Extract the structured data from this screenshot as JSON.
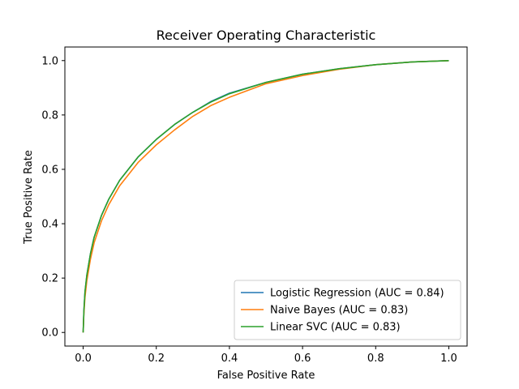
{
  "chart_data": {
    "type": "line",
    "title": "Receiver Operating Characteristic",
    "xlabel": "False Positive Rate",
    "ylabel": "True Positive Rate",
    "xlim": [
      -0.05,
      1.05
    ],
    "ylim": [
      -0.05,
      1.05
    ],
    "xticks": [
      "0.0",
      "0.2",
      "0.4",
      "0.6",
      "0.8",
      "1.0"
    ],
    "yticks": [
      "0.0",
      "0.2",
      "0.4",
      "0.6",
      "0.8",
      "1.0"
    ],
    "grid": false,
    "legend_position": "lower-right",
    "series": [
      {
        "name": "Logistic Regression (AUC = 0.84)",
        "color": "#1f77b4",
        "x": [
          0.0,
          0.002,
          0.005,
          0.01,
          0.02,
          0.03,
          0.05,
          0.07,
          0.1,
          0.15,
          0.2,
          0.25,
          0.3,
          0.35,
          0.4,
          0.5,
          0.6,
          0.7,
          0.8,
          0.9,
          1.0
        ],
        "y": [
          0.0,
          0.08,
          0.15,
          0.21,
          0.29,
          0.35,
          0.43,
          0.49,
          0.56,
          0.645,
          0.71,
          0.765,
          0.81,
          0.85,
          0.88,
          0.92,
          0.95,
          0.97,
          0.985,
          0.995,
          1.0
        ]
      },
      {
        "name": "Naive Bayes (AUC = 0.83)",
        "color": "#ff7f0e",
        "x": [
          0.0,
          0.002,
          0.005,
          0.01,
          0.02,
          0.03,
          0.05,
          0.07,
          0.1,
          0.15,
          0.2,
          0.25,
          0.3,
          0.35,
          0.4,
          0.5,
          0.6,
          0.7,
          0.8,
          0.9,
          1.0
        ],
        "y": [
          0.0,
          0.07,
          0.13,
          0.19,
          0.27,
          0.33,
          0.41,
          0.47,
          0.54,
          0.625,
          0.69,
          0.745,
          0.795,
          0.835,
          0.865,
          0.915,
          0.945,
          0.968,
          0.985,
          0.995,
          1.0
        ]
      },
      {
        "name": "Linear SVC (AUC = 0.83)",
        "color": "#2ca02c",
        "x": [
          0.0,
          0.002,
          0.005,
          0.01,
          0.02,
          0.03,
          0.05,
          0.07,
          0.1,
          0.15,
          0.2,
          0.25,
          0.3,
          0.35,
          0.4,
          0.5,
          0.6,
          0.7,
          0.8,
          0.9,
          1.0
        ],
        "y": [
          0.0,
          0.08,
          0.15,
          0.21,
          0.29,
          0.35,
          0.43,
          0.49,
          0.56,
          0.645,
          0.71,
          0.765,
          0.81,
          0.848,
          0.878,
          0.92,
          0.95,
          0.97,
          0.985,
          0.995,
          1.0
        ]
      }
    ]
  }
}
